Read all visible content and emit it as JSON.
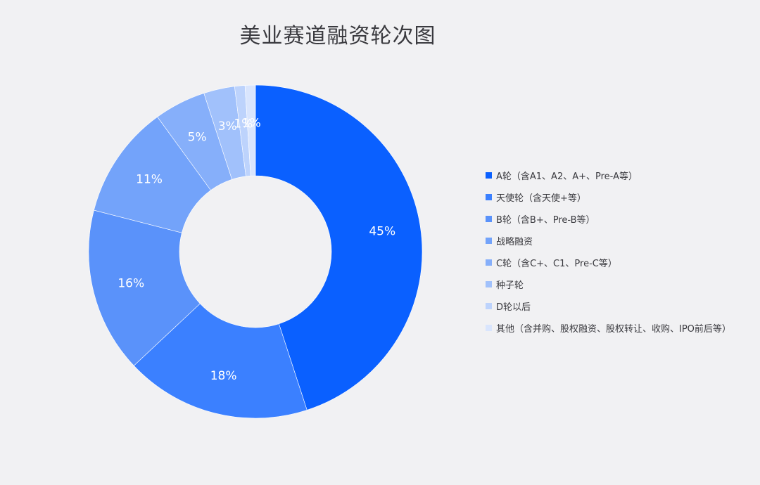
{
  "chart_data": {
    "type": "pie",
    "donut": true,
    "title": "美业赛道融资轮次图",
    "legend_position": "right",
    "categories": [
      "A轮（含A1、A2、A+、Pre-A等）",
      "天使轮（含天使+等）",
      "B轮（含B+、Pre-B等）",
      "战略融资",
      "C轮（含C+、C1、Pre-C等）",
      "种子轮",
      "D轮以后",
      "其他（含并购、股权融资、股权转让、收购、IPO前后等）"
    ],
    "values": [
      45,
      18,
      16,
      11,
      5,
      3,
      1,
      1
    ],
    "labels": [
      "45%",
      "18%",
      "16%",
      "11%",
      "5%",
      "3%",
      "1%",
      "1%"
    ],
    "colors": [
      "#0a60ff",
      "#3b80ff",
      "#5a92fa",
      "#73a3fa",
      "#86affa",
      "#a1c1fb",
      "#bdd3fc",
      "#d9e5fd"
    ]
  }
}
